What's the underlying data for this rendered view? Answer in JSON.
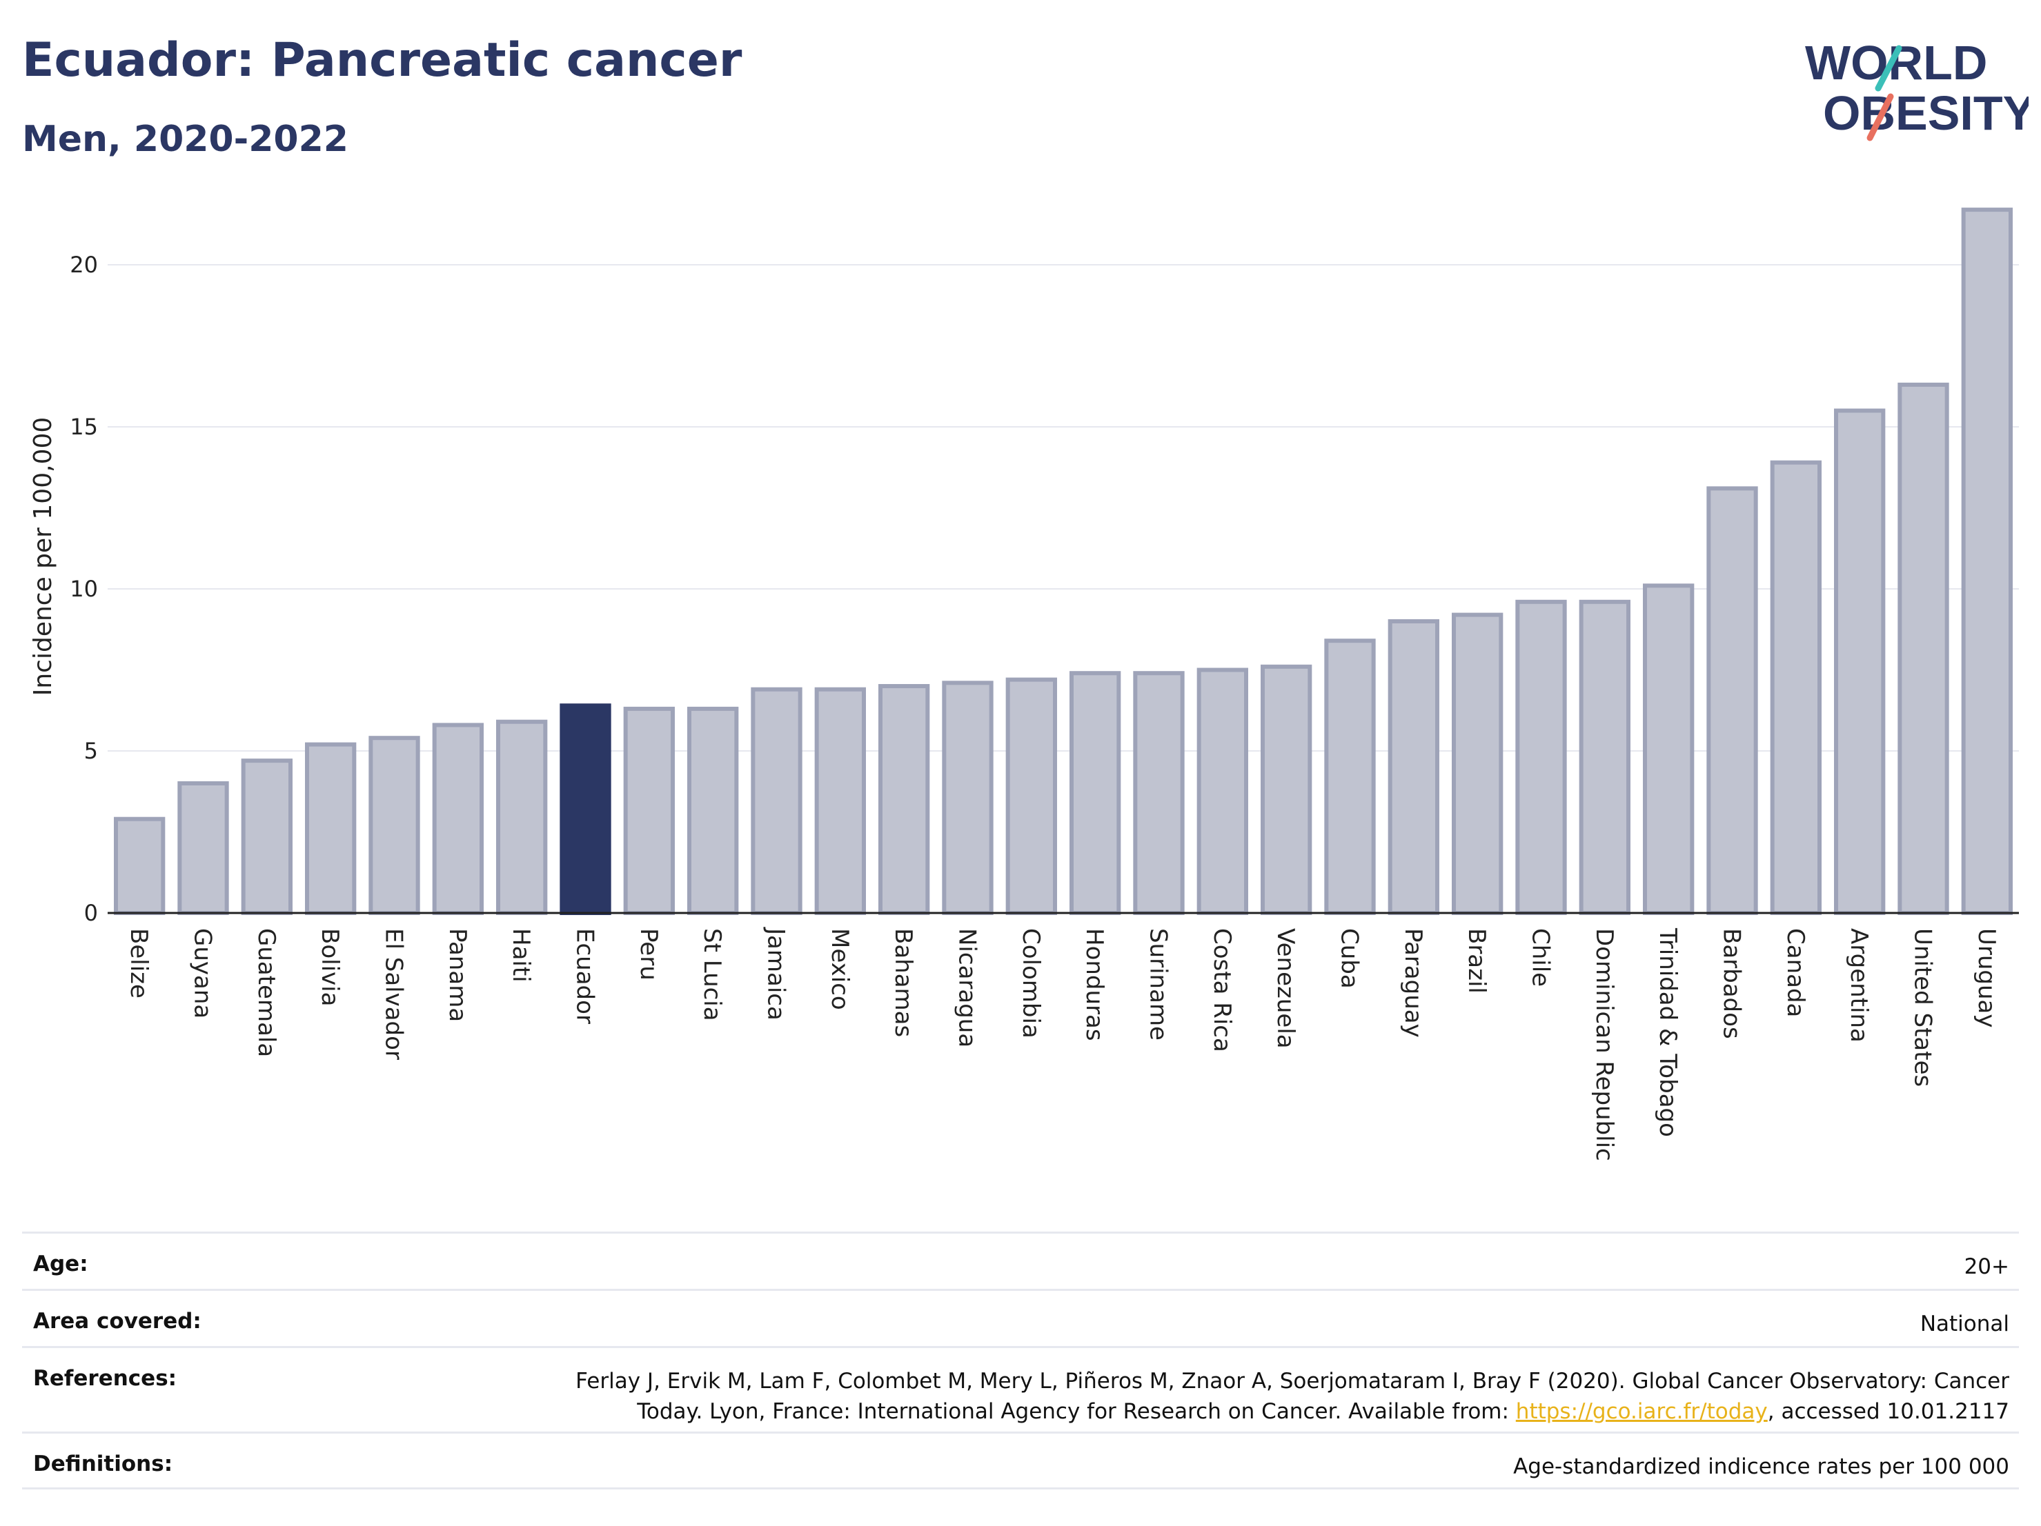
{
  "title": "Ecuador: Pancreatic cancer",
  "subtitle": "Men, 2020-2022",
  "logo": {
    "line1": "WORLD",
    "line2": "OBESITY",
    "slash_colors": [
      "#3bbfb8",
      "#e8705f"
    ]
  },
  "colors": {
    "bar": "#c0c3d0",
    "bar_edge": "#9ea3b8",
    "highlight": "#2b3764",
    "title": "#2b3764",
    "link": "#e8b21a"
  },
  "chart_data": {
    "type": "bar",
    "title": "Ecuador: Pancreatic cancer",
    "subtitle": "Men, 2020-2022",
    "xlabel": "",
    "ylabel": "Incidence per 100,000",
    "ylim": [
      0,
      22
    ],
    "yticks": [
      0,
      5,
      10,
      15,
      20
    ],
    "grid": true,
    "highlight": "Ecuador",
    "categories": [
      "Belize",
      "Guyana",
      "Guatemala",
      "Bolivia",
      "El Salvador",
      "Panama",
      "Haiti",
      "Ecuador",
      "Peru",
      "St Lucia",
      "Jamaica",
      "Mexico",
      "Bahamas",
      "Nicaragua",
      "Colombia",
      "Honduras",
      "Suriname",
      "Costa Rica",
      "Venezuela",
      "Cuba",
      "Paraguay",
      "Brazil",
      "Chile",
      "Dominican Republic",
      "Trinidad & Tobago",
      "Barbados",
      "Canada",
      "Argentina",
      "United States",
      "Uruguay"
    ],
    "values": [
      2.9,
      4.0,
      4.7,
      5.2,
      5.4,
      5.8,
      5.9,
      6.4,
      6.3,
      6.3,
      6.9,
      6.9,
      7.0,
      7.1,
      7.2,
      7.4,
      7.4,
      7.5,
      7.6,
      8.4,
      9.0,
      9.2,
      9.6,
      9.6,
      10.1,
      13.1,
      13.9,
      15.5,
      16.3,
      21.7
    ]
  },
  "info": {
    "age_label": "Age:",
    "age_value": "20+",
    "area_label": "Area covered:",
    "area_value": "National",
    "refs_label": "References:",
    "refs_line1": "Ferlay J, Ervik M, Lam F, Colombet M, Mery L, Piñeros M, Znaor A, Soerjomataram I, Bray F (2020). Global Cancer Observatory: Cancer",
    "refs_line2_pre": "Today. Lyon, France: International Agency for Research on Cancer. Available from: ",
    "refs_link": "https://gco.iarc.fr/today",
    "refs_line2_post": ", accessed 10.01.2117",
    "defs_label": "Definitions:",
    "defs_value": "Age-standardized indicence rates per 100 000"
  }
}
